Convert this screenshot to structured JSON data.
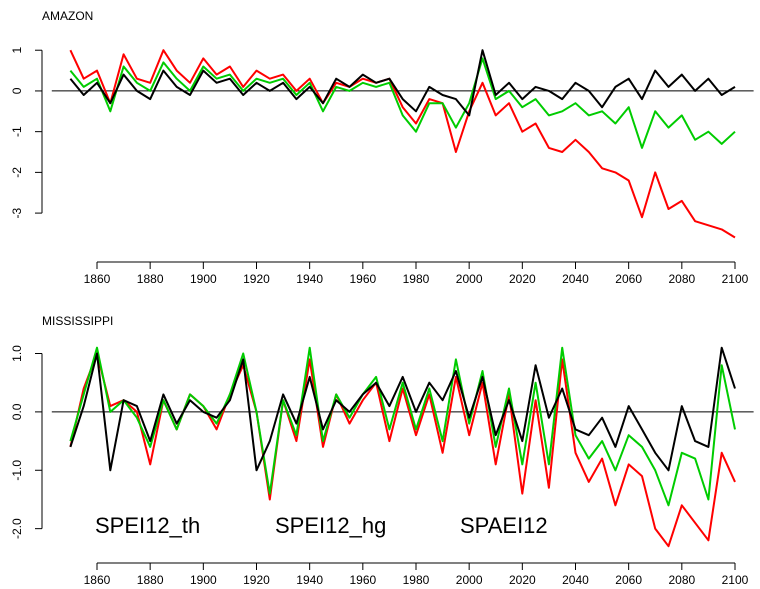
{
  "chart_data": [
    {
      "type": "line",
      "title": "AMAZON",
      "x": [
        1850,
        1855,
        1860,
        1865,
        1870,
        1875,
        1880,
        1885,
        1890,
        1895,
        1900,
        1905,
        1910,
        1915,
        1920,
        1925,
        1930,
        1935,
        1940,
        1945,
        1950,
        1955,
        1960,
        1965,
        1970,
        1975,
        1980,
        1985,
        1990,
        1995,
        2000,
        2005,
        2010,
        2015,
        2020,
        2025,
        2030,
        2035,
        2040,
        2045,
        2050,
        2055,
        2060,
        2065,
        2070,
        2075,
        2080,
        2085,
        2090,
        2095,
        2100
      ],
      "series": [
        {
          "color": "#ff0000",
          "values": [
            1.0,
            0.3,
            0.5,
            -0.3,
            0.9,
            0.3,
            0.2,
            1.0,
            0.5,
            0.2,
            0.8,
            0.4,
            0.6,
            0.1,
            0.5,
            0.3,
            0.4,
            0.0,
            0.3,
            -0.3,
            0.2,
            0.1,
            0.3,
            0.2,
            0.3,
            -0.4,
            -0.8,
            -0.2,
            -0.3,
            -1.5,
            -0.5,
            0.2,
            -0.6,
            -0.3,
            -1.0,
            -0.8,
            -1.4,
            -1.5,
            -1.2,
            -1.5,
            -1.9,
            -2.0,
            -2.2,
            -3.1,
            -2.0,
            -2.9,
            -2.7,
            -3.2,
            -3.3,
            -3.4,
            -3.6
          ]
        },
        {
          "color": "#00cc00",
          "values": [
            0.5,
            0.1,
            0.3,
            -0.5,
            0.6,
            0.2,
            0.0,
            0.7,
            0.3,
            0.0,
            0.6,
            0.3,
            0.4,
            0.0,
            0.3,
            0.2,
            0.3,
            -0.1,
            0.2,
            -0.5,
            0.1,
            0.0,
            0.2,
            0.1,
            0.2,
            -0.6,
            -1.0,
            -0.3,
            -0.3,
            -0.9,
            -0.3,
            0.8,
            -0.2,
            0.0,
            -0.4,
            -0.2,
            -0.6,
            -0.5,
            -0.3,
            -0.6,
            -0.5,
            -0.8,
            -0.4,
            -1.4,
            -0.5,
            -0.9,
            -0.6,
            -1.2,
            -1.0,
            -1.3,
            -1.0
          ]
        },
        {
          "color": "#000000",
          "values": [
            0.3,
            -0.1,
            0.2,
            -0.3,
            0.4,
            0.0,
            -0.2,
            0.5,
            0.1,
            -0.1,
            0.5,
            0.2,
            0.3,
            -0.1,
            0.2,
            0.0,
            0.2,
            -0.2,
            0.1,
            -0.3,
            0.3,
            0.1,
            0.4,
            0.2,
            0.3,
            -0.2,
            -0.5,
            0.1,
            -0.1,
            -0.2,
            -0.6,
            1.0,
            -0.1,
            0.2,
            -0.2,
            0.1,
            0.0,
            -0.2,
            0.2,
            0.0,
            -0.4,
            0.1,
            0.3,
            -0.2,
            0.5,
            0.1,
            0.4,
            0.0,
            0.3,
            -0.1,
            0.1
          ]
        }
      ],
      "xlim": [
        1843,
        2107
      ],
      "xticks": [
        1860,
        1880,
        1900,
        1920,
        1940,
        1960,
        1980,
        2000,
        2020,
        2040,
        2060,
        2080,
        2100
      ],
      "ylim": [
        -3.7,
        1.3
      ],
      "yticks": [
        -3,
        -2,
        -1,
        0,
        1
      ],
      "hline": 0
    },
    {
      "type": "line",
      "title": "MISSISSIPPI",
      "x": [
        1850,
        1855,
        1860,
        1865,
        1870,
        1875,
        1880,
        1885,
        1890,
        1895,
        1900,
        1905,
        1910,
        1915,
        1920,
        1925,
        1930,
        1935,
        1940,
        1945,
        1950,
        1955,
        1960,
        1965,
        1970,
        1975,
        1980,
        1985,
        1990,
        1995,
        2000,
        2005,
        2010,
        2015,
        2020,
        2025,
        2030,
        2035,
        2040,
        2045,
        2050,
        2055,
        2060,
        2065,
        2070,
        2075,
        2080,
        2085,
        2090,
        2095,
        2100
      ],
      "series": [
        {
          "name": "SPEI12_th",
          "color": "#ff0000",
          "values": [
            -0.6,
            0.4,
            1.0,
            0.1,
            0.2,
            0.0,
            -0.9,
            0.2,
            -0.3,
            0.3,
            0.1,
            -0.3,
            0.3,
            0.8,
            0.0,
            -1.5,
            0.2,
            -0.5,
            0.9,
            -0.6,
            0.3,
            -0.2,
            0.2,
            0.5,
            -0.5,
            0.4,
            -0.4,
            0.3,
            -0.7,
            0.6,
            -0.4,
            0.5,
            -0.9,
            0.3,
            -1.4,
            0.2,
            -1.3,
            0.9,
            -0.7,
            -1.2,
            -0.8,
            -1.6,
            -0.9,
            -1.1,
            -2.0,
            -2.3,
            -1.6,
            -1.9,
            -2.2,
            -0.7,
            -1.2
          ]
        },
        {
          "name": "SPEI12_hg",
          "color": "#00cc00",
          "values": [
            -0.5,
            0.3,
            1.1,
            0.0,
            0.2,
            -0.1,
            -0.6,
            0.2,
            -0.3,
            0.3,
            0.1,
            -0.2,
            0.3,
            1.0,
            0.0,
            -1.4,
            0.2,
            -0.4,
            1.1,
            -0.5,
            0.3,
            -0.1,
            0.3,
            0.6,
            -0.3,
            0.5,
            -0.3,
            0.4,
            -0.5,
            0.9,
            -0.2,
            0.7,
            -0.6,
            0.4,
            -0.9,
            0.5,
            -0.9,
            1.1,
            -0.4,
            -0.8,
            -0.5,
            -1.0,
            -0.4,
            -0.6,
            -1.0,
            -1.6,
            -0.7,
            -0.8,
            -1.5,
            0.8,
            -0.3
          ]
        },
        {
          "name": "SPAEI12",
          "color": "#000000",
          "values": [
            -0.6,
            0.1,
            1.0,
            -1.0,
            0.2,
            0.1,
            -0.5,
            0.3,
            -0.2,
            0.2,
            0.0,
            -0.1,
            0.2,
            0.9,
            -1.0,
            -0.5,
            0.3,
            -0.2,
            0.6,
            -0.3,
            0.2,
            0.0,
            0.3,
            0.5,
            0.1,
            0.6,
            0.0,
            0.5,
            0.2,
            0.7,
            -0.1,
            0.6,
            -0.4,
            0.2,
            -0.5,
            0.8,
            -0.1,
            0.4,
            -0.3,
            -0.4,
            -0.1,
            -0.6,
            0.1,
            -0.3,
            -0.7,
            -1.0,
            0.1,
            -0.5,
            -0.6,
            1.1,
            0.4
          ]
        }
      ],
      "xlim": [
        1843,
        2107
      ],
      "xticks": [
        1860,
        1880,
        1900,
        1920,
        1940,
        1960,
        1980,
        2000,
        2020,
        2040,
        2060,
        2080,
        2100
      ],
      "ylim": [
        -2.4,
        1.3
      ],
      "yticks": [
        {
          "value": -2,
          "label": "-2.0"
        },
        {
          "value": -1,
          "label": "-1.0"
        },
        {
          "value": 0,
          "label": "0.0"
        },
        {
          "value": 1,
          "label": "1.0"
        }
      ],
      "hline": 0
    }
  ]
}
